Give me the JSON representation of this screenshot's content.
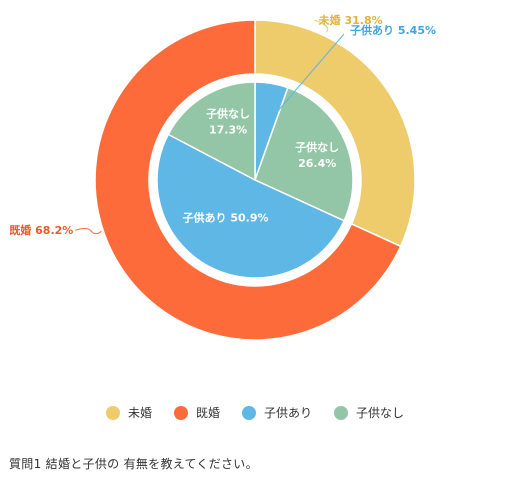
{
  "chart_data": {
    "type": "pie",
    "outer": [
      {
        "label": "未婚",
        "value": 31.8,
        "display": "未婚 31.8%",
        "color": "#eecb6b"
      },
      {
        "label": "既婚",
        "value": 68.2,
        "display": "既婚 68.2%",
        "color": "#fe6b3b"
      }
    ],
    "inner": [
      {
        "label": "子供あり",
        "value": 5.45,
        "display": "子供あり 5.45%",
        "color": "#5fb7e6"
      },
      {
        "label": "子供なし",
        "value": 26.4,
        "display": "子供なし\n26.4%",
        "color": "#93c6a7"
      },
      {
        "label": "子供あり",
        "value": 50.9,
        "display": "子供あり 50.9%",
        "color": "#5fb7e6"
      },
      {
        "label": "子供なし",
        "value": 17.3,
        "display": "子供なし\n17.3%",
        "color": "#93c6a7"
      }
    ]
  },
  "legend": [
    {
      "label": "未婚",
      "color": "#eecb6b"
    },
    {
      "label": "既婚",
      "color": "#fe6b3b"
    },
    {
      "label": "子供あり",
      "color": "#5fb7e6"
    },
    {
      "label": "子供なし",
      "color": "#93c6a7"
    }
  ],
  "caption": "質問1  結婚と子供の 有無を教えてください。"
}
